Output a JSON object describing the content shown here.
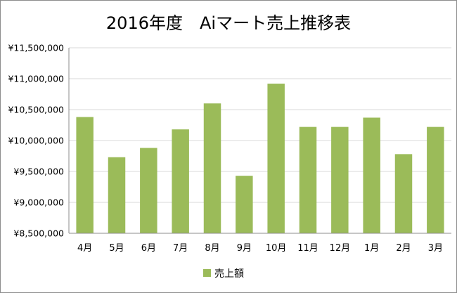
{
  "chart_data": {
    "type": "bar",
    "title": "2016年度　Aiマート売上推移表",
    "categories": [
      "4月",
      "5月",
      "6月",
      "7月",
      "8月",
      "9月",
      "10月",
      "11月",
      "12月",
      "1月",
      "2月",
      "3月"
    ],
    "series": [
      {
        "name": "売上額",
        "values": [
          10380000,
          9730000,
          9880000,
          10180000,
          10600000,
          9430000,
          10920000,
          10220000,
          10220000,
          10370000,
          9780000,
          10220000
        ]
      }
    ],
    "ylim": [
      8500000,
      11500000
    ],
    "ytick_step": 500000,
    "yticks": [
      "¥8,500,000",
      "¥9,000,000",
      "¥9,500,000",
      "¥10,000,000",
      "¥10,500,000",
      "¥11,000,000",
      "¥11,500,000"
    ],
    "grid": true,
    "legend_position": "bottom",
    "colors": {
      "bar": "#9bbb59",
      "grid": "#d9d9d9",
      "axis": "#8c8c8c",
      "text": "#000000"
    }
  }
}
